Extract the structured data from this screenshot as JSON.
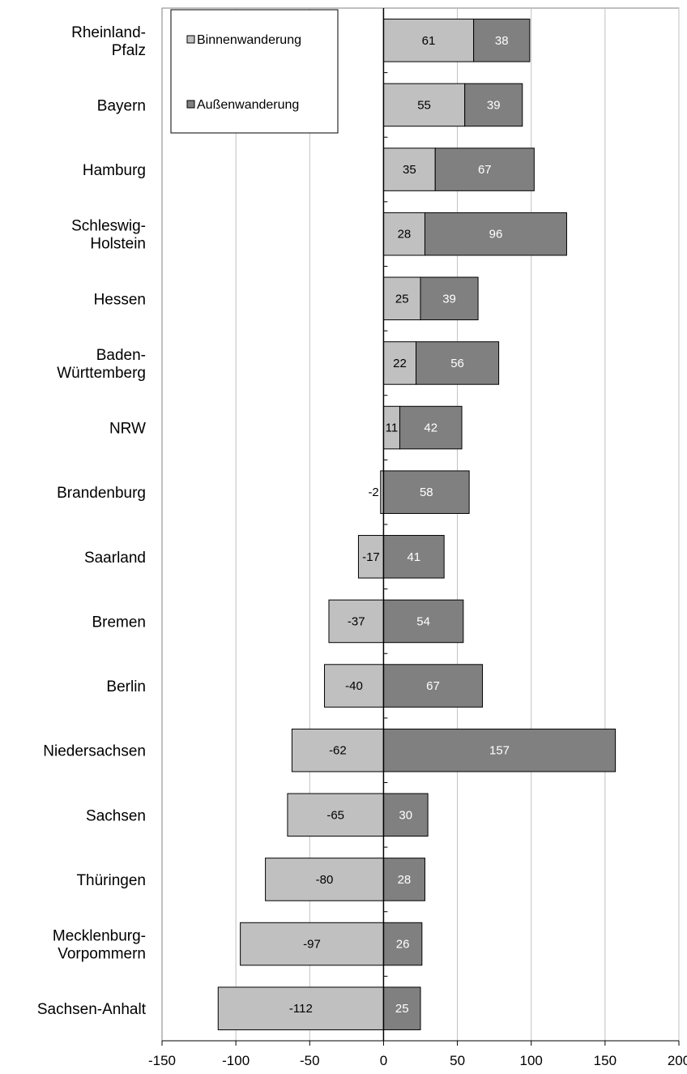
{
  "chart_data": {
    "type": "bar",
    "orientation": "horizontal",
    "stacked": "diverging",
    "categories": [
      "Rheinland-\nPfalz",
      "Bayern",
      "Hamburg",
      "Schleswig-\nHolstein",
      "Hessen",
      "Baden-\nWürttemberg",
      "NRW",
      "Brandenburg",
      "Saarland",
      "Bremen",
      "Berlin",
      "Niedersachsen",
      "Sachsen",
      "Thüringen",
      "Mecklenburg-\nVorpommern",
      "Sachsen-Anhalt"
    ],
    "series": [
      {
        "name": "Binnenwanderung",
        "color": "#c0c0c0",
        "label_color": "#000000",
        "values": [
          61,
          55,
          35,
          28,
          25,
          22,
          11,
          -2,
          -17,
          -37,
          -40,
          -62,
          -65,
          -80,
          -97,
          -112
        ]
      },
      {
        "name": "Außenwanderung",
        "color": "#808080",
        "label_color": "#ffffff",
        "values": [
          38,
          39,
          67,
          96,
          39,
          56,
          42,
          58,
          41,
          54,
          67,
          157,
          30,
          28,
          26,
          25
        ]
      }
    ],
    "xlim": [
      -150,
      200
    ],
    "xticks": [
      -150,
      -100,
      -50,
      0,
      50,
      100,
      150,
      200
    ],
    "xtick_labels": [
      "-150",
      "-100",
      "-50",
      "0",
      "50",
      "100",
      "150",
      "200"
    ],
    "grid": "vertical",
    "legend": "top-left",
    "title": "",
    "xlabel": "",
    "ylabel": ""
  }
}
